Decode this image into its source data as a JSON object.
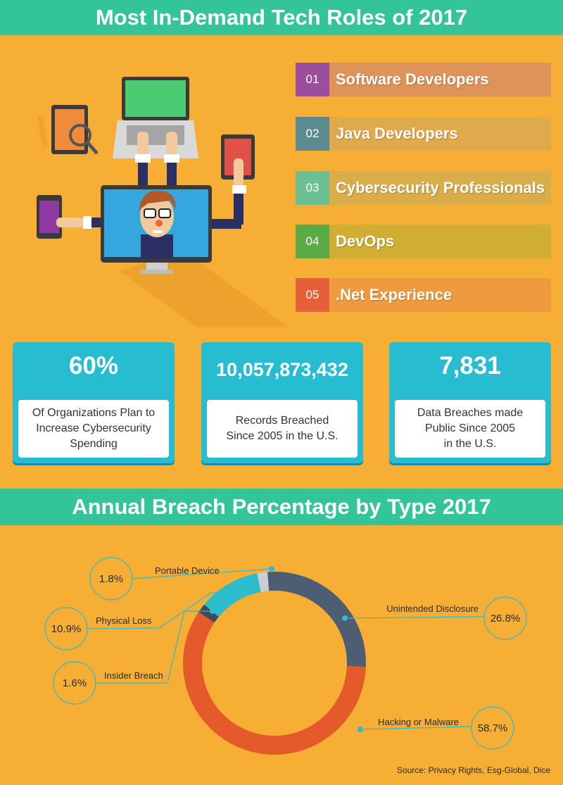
{
  "header": {
    "title": "Most In-Demand Tech Roles of 2017"
  },
  "roles": [
    {
      "num": "01",
      "name": "Software Developers",
      "num_color": "#9b4e9b",
      "bar_color": "#de9358"
    },
    {
      "num": "02",
      "name": "Java Developers",
      "num_color": "#5b8b8f",
      "bar_color": "#e0a94c"
    },
    {
      "num": "03",
      "name": "Cybersecurity Professionals",
      "num_color": "#6cbf93",
      "bar_color": "#d9ad4a"
    },
    {
      "num": "04",
      "name": "DevOps",
      "num_color": "#5aaa45",
      "bar_color": "#d1ae33"
    },
    {
      "num": "05",
      "name": ".Net Experience",
      "num_color": "#e5603a",
      "bar_color": "#ef9a3e"
    }
  ],
  "stats": [
    {
      "value": "60%",
      "description": "Of Organizations Plan to\nIncrease Cybersecurity\nSpending"
    },
    {
      "value": "10,057,873,432",
      "description": "Records Breached\nSince 2005 in the U.S."
    },
    {
      "value": "7,831",
      "description": "Data Breaches made\nPublic Since 2005\nin the U.S."
    }
  ],
  "section2": {
    "title": "Annual Breach Percentage by Type 2017"
  },
  "chart_data": {
    "type": "pie",
    "title": "Annual Breach Percentage by Type 2017",
    "style": "donut",
    "categories": [
      "Unintended Disclosure",
      "Hacking or Malware",
      "Insider Breach",
      "Physical Loss",
      "Portable Device"
    ],
    "values": [
      26.8,
      58.7,
      1.6,
      10.9,
      1.8
    ],
    "labels": [
      "26.8%",
      "58.7%",
      "1.6%",
      "10.9%",
      "1.8%"
    ],
    "colors": [
      "#4d5e73",
      "#e55a2b",
      "#3d4a5a",
      "#2dbccc",
      "#c9cfd4"
    ],
    "source": "Source: Privacy Rights, Esg-Global, Dice"
  },
  "icons": {
    "illustration": "tech-workers-illustration-icon"
  }
}
